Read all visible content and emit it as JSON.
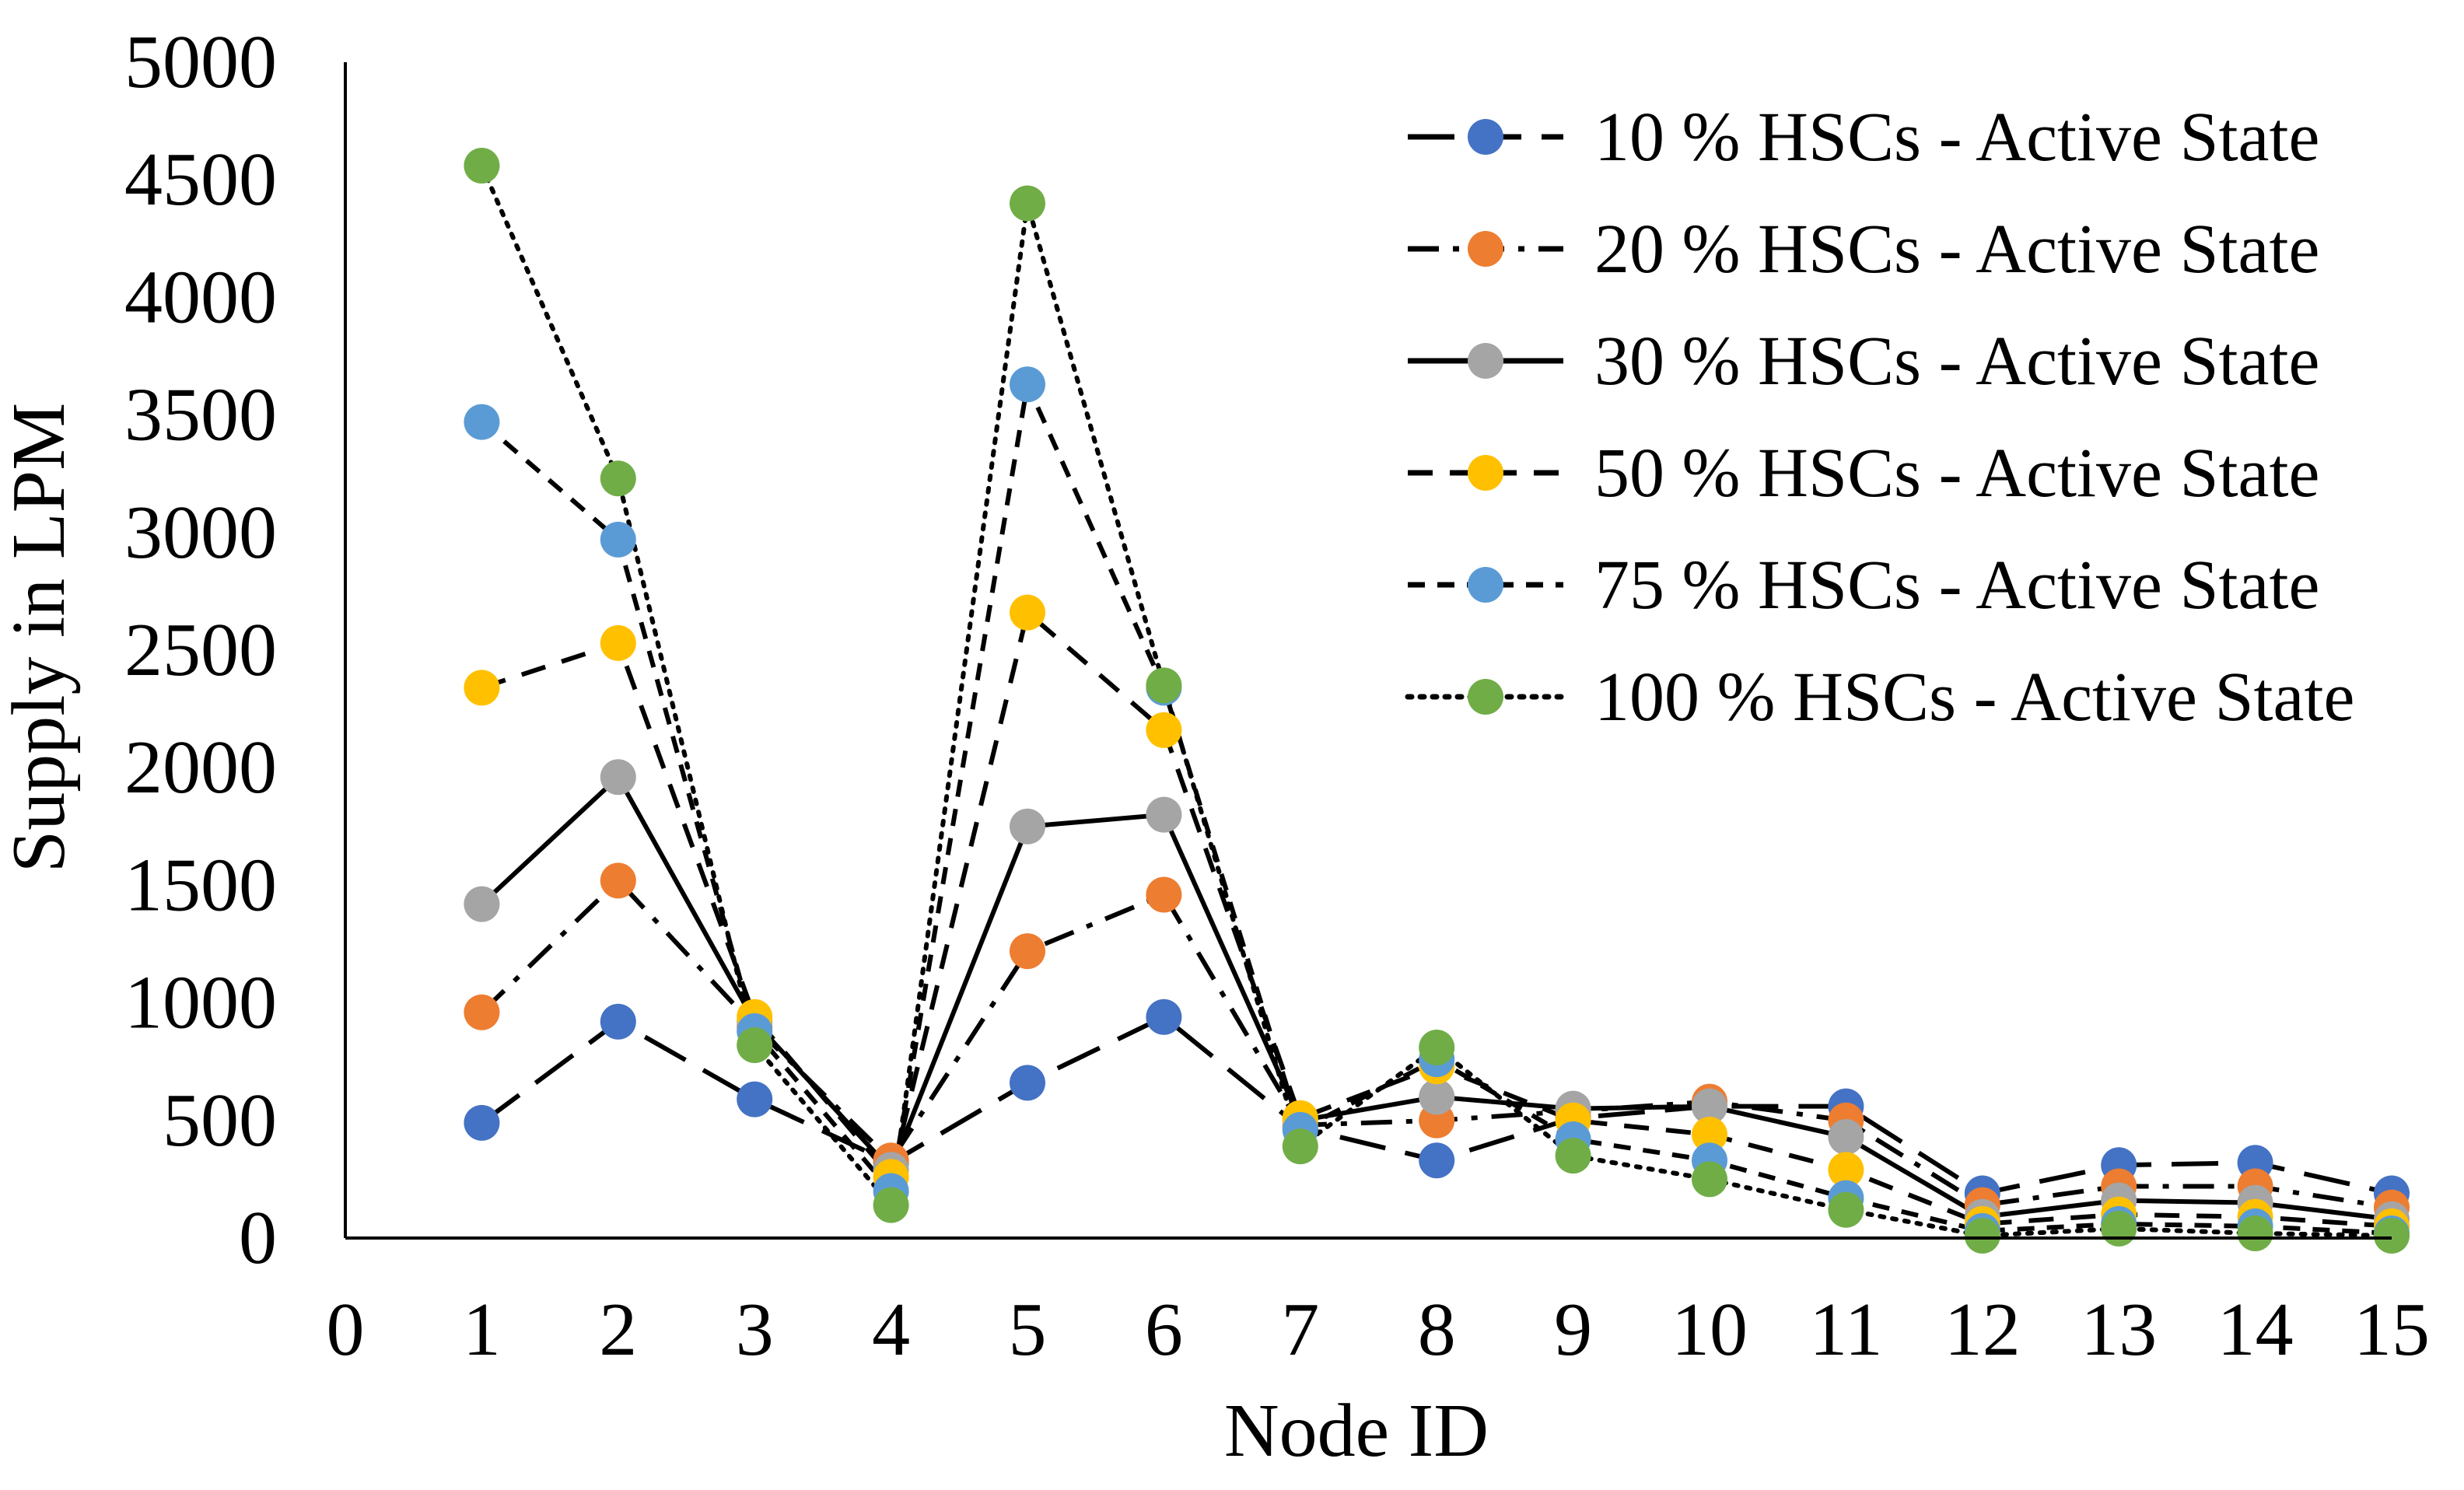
{
  "chart_data": {
    "type": "line",
    "title": "",
    "xlabel": "Node ID",
    "ylabel": "Supply in LPM",
    "xlim": [
      0,
      15
    ],
    "ylim": [
      0,
      5000
    ],
    "x_ticks": [
      "0",
      "1",
      "2",
      "3",
      "4",
      "5",
      "6",
      "7",
      "8",
      "9",
      "10",
      "11",
      "12",
      "13",
      "14",
      "15"
    ],
    "y_ticks": [
      "0",
      "500",
      "1000",
      "1500",
      "2000",
      "2500",
      "3000",
      "3500",
      "4000",
      "4500",
      "5000"
    ],
    "grid": false,
    "legend_position": "top-right",
    "x": [
      1,
      2,
      3,
      4,
      5,
      6,
      7,
      8,
      9,
      10,
      11,
      12,
      13,
      14,
      15
    ],
    "series": [
      {
        "name": "10 % HSCs - Active State",
        "line_style": "long-dash",
        "marker_color": "#4472C4",
        "values": [
          490,
          920,
          590,
          320,
          660,
          940,
          470,
          330,
          510,
          560,
          560,
          190,
          310,
          320,
          190
        ]
      },
      {
        "name": "20 % HSCs - Active State",
        "line_style": "dash-dot",
        "marker_color": "#ED7D31",
        "values": [
          960,
          1520,
          900,
          330,
          1220,
          1460,
          480,
          500,
          540,
          580,
          500,
          140,
          220,
          220,
          130
        ]
      },
      {
        "name": "30 % HSCs - Active State",
        "line_style": "solid",
        "marker_color": "#A5A5A5",
        "values": [
          1420,
          1960,
          920,
          290,
          1750,
          1800,
          500,
          600,
          550,
          560,
          430,
          90,
          160,
          150,
          80
        ]
      },
      {
        "name": "50 % HSCs - Active State",
        "line_style": "dash",
        "marker_color": "#FFC000",
        "values": [
          2340,
          2530,
          940,
          260,
          2660,
          2160,
          510,
          730,
          500,
          440,
          290,
          60,
          100,
          90,
          50
        ]
      },
      {
        "name": "75 % HSCs - Active State",
        "line_style": "short-dash",
        "marker_color": "#5B9BD5",
        "values": [
          3470,
          2970,
          880,
          200,
          3630,
          2340,
          460,
          760,
          420,
          330,
          170,
          30,
          60,
          50,
          20
        ]
      },
      {
        "name": "100 % HSCs - Active State",
        "line_style": "dotted",
        "marker_color": "#70AD47",
        "values": [
          4560,
          3230,
          820,
          140,
          4400,
          2350,
          390,
          810,
          350,
          250,
          120,
          10,
          40,
          20,
          10
        ]
      }
    ]
  }
}
